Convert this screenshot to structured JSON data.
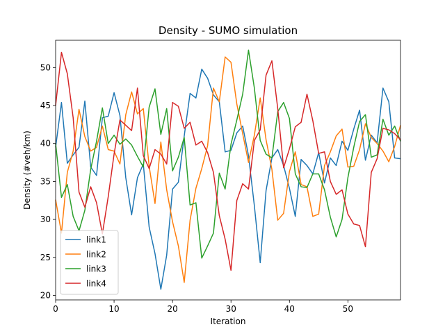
{
  "chart_data": {
    "type": "line",
    "title": "Density - SUMO simulation",
    "xlabel": "Iteration",
    "ylabel": "Density (#veh/km)",
    "xlim": [
      0,
      59
    ],
    "ylim": [
      19.4,
      53.6
    ],
    "xticks": [
      0,
      10,
      20,
      30,
      40,
      50
    ],
    "yticks": [
      20,
      25,
      30,
      35,
      40,
      45,
      50
    ],
    "grid": false,
    "legend_position": "lower-left",
    "x": [
      0,
      1,
      2,
      3,
      4,
      5,
      6,
      7,
      8,
      9,
      10,
      11,
      12,
      13,
      14,
      15,
      16,
      17,
      18,
      19,
      20,
      21,
      22,
      23,
      24,
      25,
      26,
      27,
      28,
      29,
      30,
      31,
      32,
      33,
      34,
      35,
      36,
      37,
      38,
      39,
      40,
      41,
      42,
      43,
      44,
      45,
      46,
      47,
      48,
      49,
      50,
      51,
      52,
      53,
      54,
      55,
      56,
      57,
      58,
      59
    ],
    "series": [
      {
        "name": "link1",
        "color": "#1f77b4",
        "values": [
          39.5,
          45.4,
          37.4,
          38.5,
          39.5,
          45.6,
          36.9,
          35.8,
          43.4,
          43.6,
          46.7,
          43.7,
          35.5,
          30.6,
          35.5,
          37.3,
          29.0,
          25.5,
          20.8,
          25.3,
          34.0,
          34.9,
          41.0,
          46.6,
          46.0,
          49.8,
          48.6,
          46.4,
          45.5,
          38.9,
          39.1,
          41.4,
          42.3,
          38.4,
          31.8,
          24.3,
          33.8,
          38.1,
          39.2,
          37.1,
          34.1,
          30.4,
          37.9,
          37.1,
          36.0,
          38.8,
          34.8,
          38.1,
          37.1,
          40.3,
          39.1,
          41.9,
          44.4,
          37.8,
          41.1,
          40.1,
          47.3,
          45.5,
          38.1,
          38.0
        ]
      },
      {
        "name": "link2",
        "color": "#ff7f0e",
        "values": [
          32.6,
          28.2,
          36.2,
          39.0,
          44.5,
          40.9,
          39.0,
          39.5,
          42.3,
          39.2,
          39.0,
          37.3,
          43.8,
          46.8,
          43.9,
          44.6,
          37.0,
          32.1,
          40.2,
          33.9,
          29.7,
          26.5,
          21.7,
          29.9,
          34.1,
          36.7,
          39.7,
          47.3,
          45.5,
          51.4,
          50.7,
          45.2,
          41.3,
          37.5,
          41.1,
          46.0,
          40.5,
          36.6,
          29.9,
          30.8,
          36.3,
          38.9,
          34.6,
          34.3,
          30.4,
          30.7,
          37.1,
          38.9,
          41.0,
          41.9,
          36.9,
          37.0,
          39.2,
          42.6,
          40.8,
          40.0,
          39.0,
          37.6,
          39.6,
          42.4
        ]
      },
      {
        "name": "link3",
        "color": "#2ca02c",
        "values": [
          40.0,
          32.9,
          34.6,
          30.4,
          28.5,
          31.2,
          36.6,
          40.3,
          44.7,
          40.0,
          41.1,
          39.9,
          40.6,
          39.8,
          38.3,
          36.9,
          44.8,
          47.2,
          41.2,
          44.6,
          36.4,
          38.2,
          40.8,
          31.9,
          32.2,
          24.9,
          26.5,
          28.2,
          36.1,
          34.0,
          39.9,
          43.1,
          46.5,
          52.3,
          47.3,
          40.4,
          38.6,
          38.1,
          44.2,
          45.4,
          43.3,
          36.0,
          34.3,
          34.2,
          36.0,
          36.0,
          33.9,
          30.3,
          27.7,
          30.0,
          35.5,
          39.5,
          42.9,
          43.8,
          38.2,
          38.5,
          43.2,
          41.1,
          42.3,
          40.3
        ]
      },
      {
        "name": "link4",
        "color": "#d62728",
        "values": [
          45.0,
          52.0,
          49.2,
          43.4,
          33.6,
          31.6,
          34.3,
          32.2,
          28.1,
          33.0,
          38.6,
          43.1,
          42.4,
          41.7,
          47.3,
          38.4,
          36.7,
          39.2,
          38.6,
          37.3,
          45.4,
          44.9,
          42.0,
          42.8,
          39.8,
          40.3,
          38.8,
          36.2,
          30.5,
          27.4,
          23.3,
          32.5,
          34.7,
          34.0,
          40.4,
          41.8,
          49.0,
          50.9,
          44.6,
          36.8,
          39.3,
          42.2,
          42.8,
          46.5,
          43.0,
          38.7,
          38.9,
          35.0,
          33.3,
          33.9,
          30.7,
          29.4,
          29.2,
          26.4,
          36.2,
          38.0,
          42.0,
          41.8,
          41.3,
          40.5
        ]
      }
    ]
  }
}
